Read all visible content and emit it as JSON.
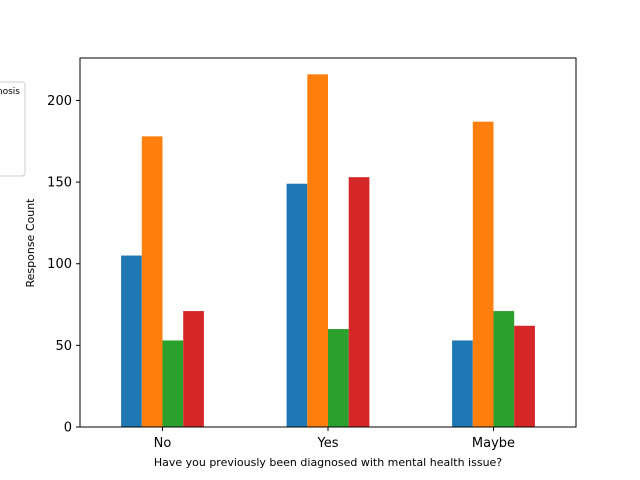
{
  "chart_data": {
    "type": "bar",
    "categories": [
      "No",
      "Yes",
      "Maybe"
    ],
    "series": [
      {
        "color": "#1f77b4",
        "values": [
          105,
          149,
          53
        ]
      },
      {
        "color": "#ff7f0e",
        "values": [
          178,
          216,
          187
        ]
      },
      {
        "color": "#2ca02c",
        "values": [
          53,
          60,
          71
        ]
      },
      {
        "color": "#d62728",
        "values": [
          71,
          153,
          62
        ]
      }
    ],
    "xlabel": "Have you previously been diagnosed with mental health issue?",
    "ylabel": "Response Count",
    "ylim": [
      0,
      226
    ],
    "yticks": [
      0,
      50,
      100,
      150,
      200
    ],
    "legend_fragment": "nosis",
    "legend_placement": "left, partly cut off"
  }
}
